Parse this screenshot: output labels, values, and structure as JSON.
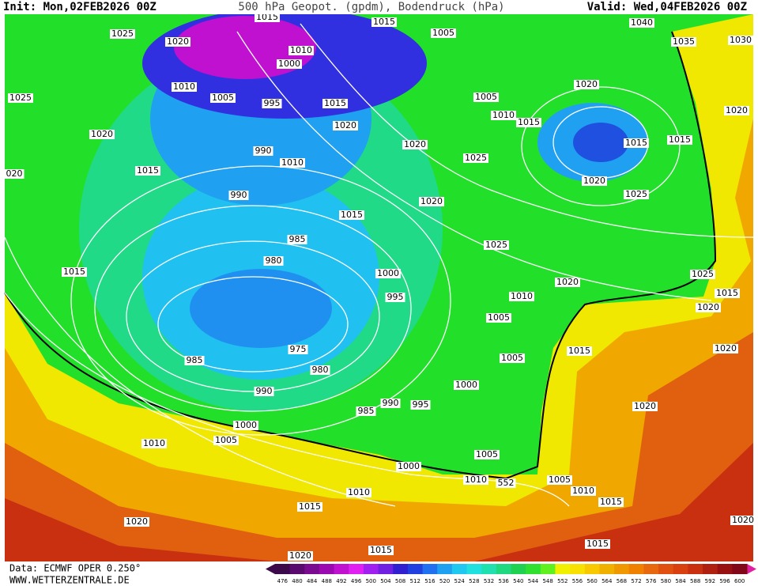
{
  "header": {
    "init": "Init: Mon,02FEB2026 00Z",
    "title": "500 hPa Geopot. (gpdm), Bodendruck (hPa)",
    "valid": "Valid: Wed,04FEB2026 00Z"
  },
  "isobar_labels": [
    "1015",
    "1025",
    "1020",
    "1010",
    "1000",
    "1015",
    "1005",
    "1040",
    "1035",
    "1030",
    "1010",
    "1005",
    "995",
    "1015",
    "1025",
    "1020",
    "1005",
    "1020",
    "1010",
    "1015",
    "1020",
    "1020",
    "1020",
    "1015",
    "1015",
    "990",
    "1010",
    "1025",
    "020",
    "1015",
    "1020",
    "990",
    "1020",
    "1025",
    "1015",
    "985",
    "1025",
    "980",
    "1015",
    "1000",
    "1025",
    "1020",
    "995",
    "1010",
    "1015",
    "1020",
    "1005",
    "975",
    "1015",
    "1020",
    "985",
    "1005",
    "980",
    "990",
    "1000",
    "990",
    "995",
    "985",
    "1020",
    "1000",
    "1005",
    "1010",
    "1005",
    "1000",
    "1010",
    "552",
    "1005",
    "1010",
    "1010",
    "1015",
    "1015",
    "1020",
    "1020",
    "1015",
    "1015",
    "1020"
  ],
  "colorbar": {
    "labels": [
      476,
      480,
      484,
      488,
      492,
      496,
      500,
      504,
      508,
      512,
      516,
      520,
      524,
      528,
      532,
      536,
      540,
      544,
      548,
      552,
      556,
      560,
      564,
      568,
      572,
      576,
      580,
      584,
      588,
      592,
      596,
      600
    ],
    "colors": [
      "#3c0a4a",
      "#5a0a6e",
      "#7a0a90",
      "#9a0ab0",
      "#c010d0",
      "#e020f0",
      "#a020f0",
      "#7020e0",
      "#3020d0",
      "#2040e0",
      "#2070f0",
      "#20a0f0",
      "#20c8f0",
      "#20e0e0",
      "#20e0b0",
      "#20d880",
      "#20d050",
      "#30e030",
      "#60f020",
      "#f0f000",
      "#f8e000",
      "#f8c800",
      "#f0b000",
      "#f09800",
      "#f08000",
      "#e86810",
      "#e05010",
      "#d84010",
      "#c83010",
      "#b02010",
      "#981010",
      "#800818"
    ]
  },
  "footer": {
    "data": "Data: ECMWF OPER 0.250°",
    "site": "WWW.WETTERZENTRALE.DE"
  }
}
